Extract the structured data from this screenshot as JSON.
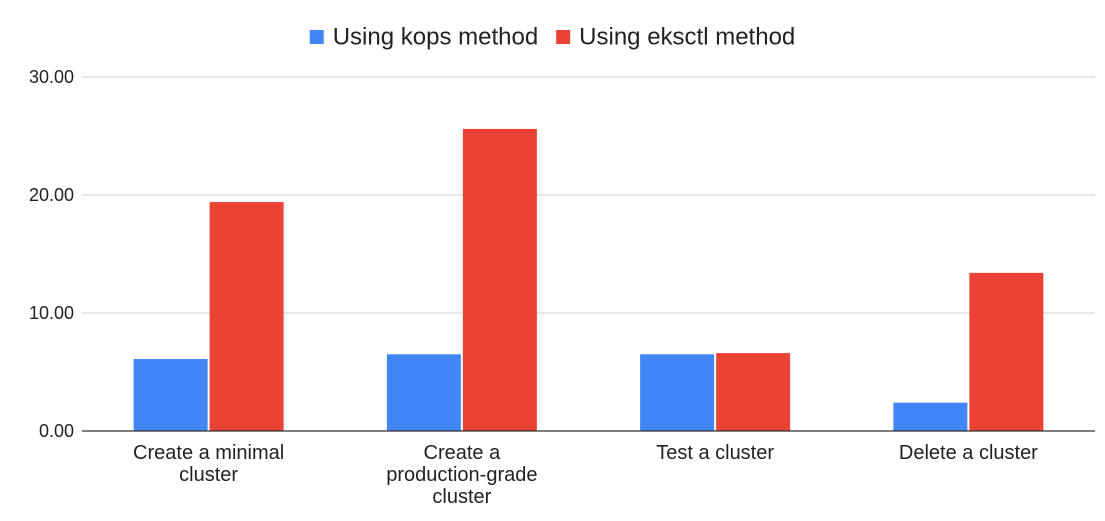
{
  "chart_data": {
    "type": "bar",
    "categories": [
      [
        "Create a minimal",
        "cluster"
      ],
      [
        "Create a",
        "production-grade",
        "cluster"
      ],
      [
        "Test a cluster"
      ],
      [
        "Delete a cluster"
      ]
    ],
    "series": [
      {
        "name": "Using kops method",
        "color": "#4285f4",
        "values": [
          6.1,
          6.5,
          6.5,
          2.4
        ]
      },
      {
        "name": "Using eksctl method",
        "color": "#ea4335",
        "values": [
          19.4,
          25.6,
          6.6,
          13.4
        ]
      }
    ],
    "y_ticks": [
      "0.00",
      "10.00",
      "20.00",
      "30.00"
    ],
    "ylim": [
      0,
      30
    ],
    "grid": true,
    "legend_position": "top-center"
  }
}
